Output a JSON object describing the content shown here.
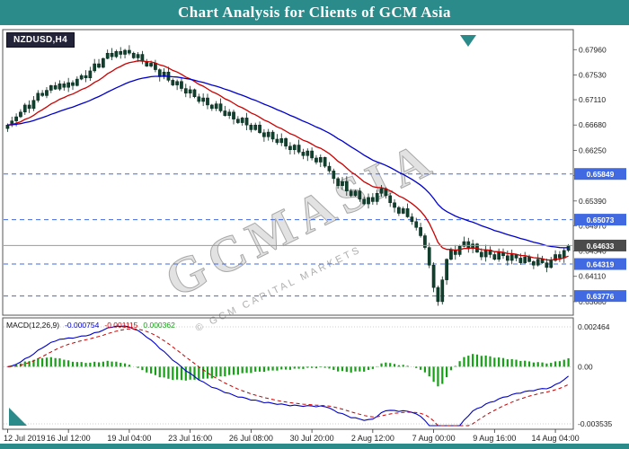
{
  "title_bar": {
    "title": "Chart Analysis for Clients of GCM Asia"
  },
  "symbol_label": "NZDUSD,H4",
  "watermark": {
    "main": "GCMASIA",
    "sub": "© GCM CAPITAL MARKETS"
  },
  "colors": {
    "accent_teal": "#2b8a8a",
    "level_blue": "#4169e1",
    "candle_body": "#10402e",
    "candle_wick": "#07281c",
    "ma_fast": "#cc0000",
    "ma_slow": "#0000cc",
    "macd_line": "#0000cc",
    "macd_signal": "#cc0000",
    "macd_hist": "#15a015",
    "current_price_line": "#999999",
    "current_price_label_bg": "#4b4b4b",
    "panel_border": "#555555"
  },
  "chart_data": {
    "type": "candlestick+macd",
    "symbol": "NZDUSD",
    "timeframe": "H4",
    "title": "NZDUSD H4 chart with MACD(12,26,9)",
    "price_axis": {
      "max": 0.683,
      "min": 0.6345,
      "ticks": [
        "0.67960",
        "0.67530",
        "0.67110",
        "0.66680",
        "0.66250",
        "0.65820",
        "0.65390",
        "0.64970",
        "0.64540",
        "0.64110",
        "0.63680"
      ]
    },
    "levels": [
      {
        "price": 0.65849,
        "label": "0.65849"
      },
      {
        "price": 0.65073,
        "label": "0.65073"
      },
      {
        "price": 0.64319,
        "label": "0.64319"
      },
      {
        "price": 0.63776,
        "label": "0.63776"
      }
    ],
    "current_price": {
      "price": 0.64633,
      "label": "0.64633"
    },
    "ma": [
      {
        "name": "MA-fast",
        "period": 13,
        "color": "#cc0000"
      },
      {
        "name": "MA-slow",
        "period": 34,
        "color": "#0000cc"
      }
    ],
    "x_labels": [
      {
        "index": 0,
        "label": "12 Jul 2019"
      },
      {
        "index": 14,
        "label": "16 Jul 12:00"
      },
      {
        "index": 28,
        "label": "19 Jul 04:00"
      },
      {
        "index": 42,
        "label": "23 Jul 16:00"
      },
      {
        "index": 56,
        "label": "26 Jul 08:00"
      },
      {
        "index": 70,
        "label": "30 Jul 20:00"
      },
      {
        "index": 84,
        "label": "2 Aug 12:00"
      },
      {
        "index": 98,
        "label": "7 Aug 00:00"
      },
      {
        "index": 112,
        "label": "9 Aug 16:00"
      },
      {
        "index": 126,
        "label": "14 Aug 04:00"
      }
    ],
    "closes": [
      0.6668,
      0.6675,
      0.6682,
      0.669,
      0.6702,
      0.6696,
      0.671,
      0.6722,
      0.6718,
      0.6727,
      0.6735,
      0.6729,
      0.6738,
      0.6732,
      0.674,
      0.6735,
      0.6746,
      0.6752,
      0.6748,
      0.676,
      0.6772,
      0.6766,
      0.6781,
      0.679,
      0.6784,
      0.6793,
      0.6788,
      0.6795,
      0.679,
      0.6782,
      0.6788,
      0.6776,
      0.6768,
      0.6773,
      0.6762,
      0.675,
      0.6758,
      0.6744,
      0.6736,
      0.6742,
      0.673,
      0.6722,
      0.6728,
      0.6716,
      0.6708,
      0.6714,
      0.6702,
      0.6696,
      0.6704,
      0.6692,
      0.6684,
      0.669,
      0.6678,
      0.6672,
      0.668,
      0.6668,
      0.666,
      0.6668,
      0.6655,
      0.6648,
      0.6656,
      0.6644,
      0.6638,
      0.6645,
      0.6632,
      0.6626,
      0.6634,
      0.6622,
      0.6616,
      0.6624,
      0.6612,
      0.6605,
      0.6613,
      0.6598,
      0.659,
      0.6577,
      0.6565,
      0.6572,
      0.6556,
      0.6548,
      0.6556,
      0.6542,
      0.6534,
      0.6545,
      0.6538,
      0.6552,
      0.656,
      0.6548,
      0.6536,
      0.6528,
      0.6518,
      0.6526,
      0.6512,
      0.6504,
      0.6494,
      0.648,
      0.646,
      0.643,
      0.6392,
      0.6368,
      0.6405,
      0.644,
      0.6456,
      0.6448,
      0.6462,
      0.647,
      0.6458,
      0.6466,
      0.6452,
      0.6444,
      0.6456,
      0.6448,
      0.644,
      0.6452,
      0.6446,
      0.6438,
      0.6448,
      0.6442,
      0.6434,
      0.6444,
      0.6436,
      0.643,
      0.644,
      0.6434,
      0.6426,
      0.6438,
      0.6448,
      0.6442,
      0.6455,
      0.6463
    ],
    "macd": {
      "label": "MACD(12,26,9)",
      "fast": 12,
      "slow": 26,
      "signal_period": 9,
      "values_text": [
        "-0.000754",
        "-0.001115",
        "0.000362"
      ],
      "axis": {
        "max": 0.002464,
        "min": -0.003535,
        "max_label": "0.002464",
        "zero_label": "0.00",
        "min_label": "-0.003535"
      }
    }
  }
}
